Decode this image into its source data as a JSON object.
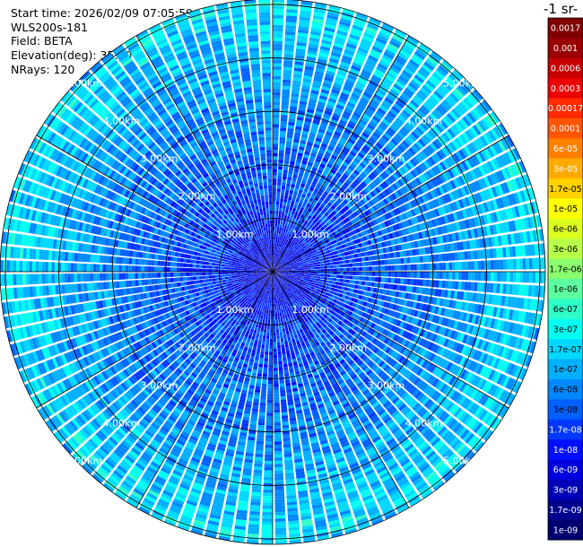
{
  "header": {
    "start_time": "Start time: 2026/02/09 07:05:59",
    "instrument": "WLS200s-181",
    "field": "Field: BETA",
    "elevation": "Elevation(deg): 35.00",
    "nrays": "NRays: 120"
  },
  "colorbar": {
    "title_fragment": "-1 sr-",
    "labels": [
      "0.0017",
      "0.001",
      "0.0006",
      "0.0003",
      "0.00017",
      "0.0001",
      "6e-05",
      "3e-05",
      "1.7e-05",
      "1e-05",
      "6e-06",
      "3e-06",
      "1.7e-06",
      "1e-06",
      "6e-07",
      "3e-07",
      "1.7e-07",
      "1e-07",
      "6e-08",
      "3e-08",
      "1.7e-08",
      "1e-08",
      "6e-09",
      "3e-09",
      "1.7e-09",
      "1e-09"
    ],
    "colors": [
      "#800000",
      "#9a0000",
      "#c80000",
      "#ee0000",
      "#ff2a00",
      "#ff5500",
      "#ff8000",
      "#ffaa00",
      "#ffd200",
      "#ffff00",
      "#dcff1e",
      "#b8ff48",
      "#8cff6e",
      "#5cffa0",
      "#2effc8",
      "#00fff0",
      "#00d8ff",
      "#00b0ff",
      "#0088ff",
      "#0060ff",
      "#0038ff",
      "#0010ff",
      "#0000e0",
      "#0000b8",
      "#000090",
      "#000070"
    ],
    "dark_text_from": 8,
    "dark_text_to": 19
  },
  "chart_data": {
    "type": "ppi-scan",
    "field": "BETA",
    "nrays": 120,
    "elevation_deg": 35.0,
    "max_range_km": 5.1,
    "range_rings_km": [
      1,
      2,
      3,
      4,
      5
    ],
    "ring_labels": [
      "1.00km",
      "2.00km",
      "3.00km",
      "4.00km",
      "5.00km"
    ],
    "beta_scale": "log",
    "beta_range": [
      1e-09,
      0.0017
    ],
    "radial_profile": [
      {
        "range_km": 0.2,
        "beta": 5e-09
      },
      {
        "range_km": 1.0,
        "beta": 1.5e-08
      },
      {
        "range_km": 2.0,
        "beta": 3e-08
      },
      {
        "range_km": 3.0,
        "beta": 5e-08
      },
      {
        "range_km": 4.0,
        "beta": 1e-07
      },
      {
        "range_km": 4.6,
        "beta": 1.5e-07
      },
      {
        "range_km": 5.0,
        "beta": 2e-07
      },
      {
        "range_km": 5.1,
        "beta": 8e-08
      }
    ]
  }
}
